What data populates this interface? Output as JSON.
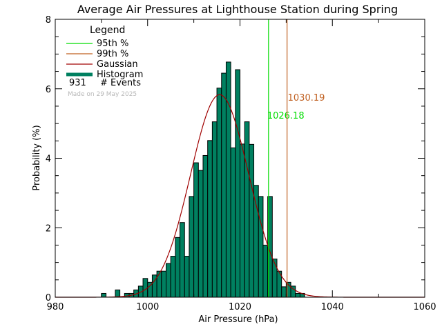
{
  "chart_data": {
    "type": "bar",
    "title": "Average Air Pressures at Lighthouse Station during Spring",
    "xlabel": "Air Pressure (hPa)",
    "ylabel": "Probability (%)",
    "xlim": [
      980,
      1060
    ],
    "ylim": [
      0,
      8
    ],
    "xticks": [
      980,
      1000,
      1020,
      1040,
      1060
    ],
    "yticks": [
      0,
      2,
      4,
      6,
      8
    ],
    "bin_width": 1,
    "histogram": {
      "name": "Histogram",
      "color": "#008060",
      "bins": [
        {
          "x": 990,
          "y": 0.11
        },
        {
          "x": 991,
          "y": 0.0
        },
        {
          "x": 992,
          "y": 0.0
        },
        {
          "x": 993,
          "y": 0.21
        },
        {
          "x": 994,
          "y": 0.0
        },
        {
          "x": 995,
          "y": 0.11
        },
        {
          "x": 996,
          "y": 0.11
        },
        {
          "x": 997,
          "y": 0.21
        },
        {
          "x": 998,
          "y": 0.32
        },
        {
          "x": 999,
          "y": 0.54
        },
        {
          "x": 1000,
          "y": 0.43
        },
        {
          "x": 1001,
          "y": 0.64
        },
        {
          "x": 1002,
          "y": 0.75
        },
        {
          "x": 1003,
          "y": 0.75
        },
        {
          "x": 1004,
          "y": 0.97
        },
        {
          "x": 1005,
          "y": 1.18
        },
        {
          "x": 1006,
          "y": 1.72
        },
        {
          "x": 1007,
          "y": 2.15
        },
        {
          "x": 1008,
          "y": 1.18
        },
        {
          "x": 1009,
          "y": 2.9
        },
        {
          "x": 1010,
          "y": 3.87
        },
        {
          "x": 1011,
          "y": 3.65
        },
        {
          "x": 1012,
          "y": 4.08
        },
        {
          "x": 1013,
          "y": 4.51
        },
        {
          "x": 1014,
          "y": 5.05
        },
        {
          "x": 1015,
          "y": 6.02
        },
        {
          "x": 1016,
          "y": 6.45
        },
        {
          "x": 1017,
          "y": 6.77
        },
        {
          "x": 1018,
          "y": 4.3
        },
        {
          "x": 1019,
          "y": 6.55
        },
        {
          "x": 1020,
          "y": 4.41
        },
        {
          "x": 1021,
          "y": 5.05
        },
        {
          "x": 1022,
          "y": 4.4
        },
        {
          "x": 1023,
          "y": 3.22
        },
        {
          "x": 1024,
          "y": 2.9
        },
        {
          "x": 1025,
          "y": 1.5
        },
        {
          "x": 1026,
          "y": 2.9
        },
        {
          "x": 1027,
          "y": 1.1
        },
        {
          "x": 1028,
          "y": 0.75
        },
        {
          "x": 1029,
          "y": 0.3
        },
        {
          "x": 1030,
          "y": 0.43
        },
        {
          "x": 1031,
          "y": 0.32
        },
        {
          "x": 1032,
          "y": 0.11
        },
        {
          "x": 1033,
          "y": 0.11
        }
      ]
    },
    "gaussian": {
      "name": "Gaussian",
      "color": "#a00000",
      "mean": 1015.6,
      "sigma": 6.3,
      "peak": 5.83
    },
    "percentiles": [
      {
        "name": "95th %",
        "value": 1026.18,
        "label": "1026.18",
        "color": "#00dd00"
      },
      {
        "name": "99th %",
        "value": 1030.19,
        "label": "1030.19",
        "color": "#c06020"
      }
    ],
    "legend": {
      "title": "Legend",
      "placement": "top-left",
      "entries": [
        {
          "name": "95th %",
          "color": "#00dd00",
          "style": "thin"
        },
        {
          "name": "99th %",
          "color": "#c06020",
          "style": "thin"
        },
        {
          "name": "Gaussian",
          "color": "#a00000",
          "style": "thin"
        },
        {
          "name": "Histogram",
          "color": "#008060",
          "style": "thick"
        }
      ],
      "events_count": "931",
      "events_label": "# Events",
      "made_on": "Made on 29 May 2025"
    }
  }
}
